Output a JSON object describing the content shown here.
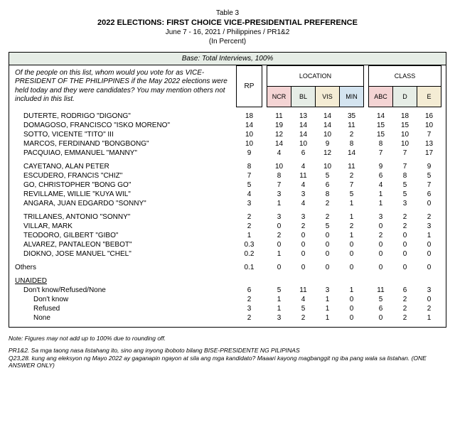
{
  "header": {
    "table_label": "Table 3",
    "title": "2022 ELECTIONS: FIRST CHOICE VICE-PRESIDENTIAL PREFERENCE",
    "sub1": "June 7 - 16, 2021 / Philippines / PR1&2",
    "sub2": "(In Percent)"
  },
  "base_row": "Base: Total Interviews, 100%",
  "question": "Of the people on this list, whom would you vote for as VICE-PRESIDENT OF THE PHILIPPINES if the May 2022 elections were held today and they were candidates? You may mention others not included in this list.",
  "columns": {
    "rp": "RP",
    "location_group": "LOCATION",
    "class_group": "CLASS",
    "loc": [
      "NCR",
      "BL",
      "VIS",
      "MIN"
    ],
    "cls": [
      "ABC",
      "D",
      "E"
    ]
  },
  "groups": [
    [
      {
        "name": "DUTERTE, RODRIGO \"DIGONG\"",
        "rp": "18",
        "loc": [
          "11",
          "13",
          "14",
          "35"
        ],
        "cls": [
          "14",
          "18",
          "16"
        ]
      },
      {
        "name": "DOMAGOSO, FRANCISCO \"ISKO MORENO\"",
        "rp": "14",
        "loc": [
          "19",
          "14",
          "14",
          "11"
        ],
        "cls": [
          "15",
          "15",
          "10"
        ]
      },
      {
        "name": "SOTTO, VICENTE \"TITO\" III",
        "rp": "10",
        "loc": [
          "12",
          "14",
          "10",
          "2"
        ],
        "cls": [
          "15",
          "10",
          "7"
        ]
      },
      {
        "name": "MARCOS, FERDINAND \"BONGBONG\"",
        "rp": "10",
        "loc": [
          "14",
          "10",
          "9",
          "8"
        ],
        "cls": [
          "8",
          "10",
          "13"
        ]
      },
      {
        "name": "PACQUIAO, EMMANUEL \"MANNY\"",
        "rp": "9",
        "loc": [
          "4",
          "6",
          "12",
          "14"
        ],
        "cls": [
          "7",
          "7",
          "17"
        ]
      }
    ],
    [
      {
        "name": "CAYETANO, ALAN PETER",
        "rp": "8",
        "loc": [
          "10",
          "4",
          "10",
          "11"
        ],
        "cls": [
          "9",
          "7",
          "9"
        ]
      },
      {
        "name": "ESCUDERO, FRANCIS \"CHIZ\"",
        "rp": "7",
        "loc": [
          "8",
          "11",
          "5",
          "2"
        ],
        "cls": [
          "6",
          "8",
          "5"
        ]
      },
      {
        "name": "GO, CHRISTOPHER \"BONG GO\"",
        "rp": "5",
        "loc": [
          "7",
          "4",
          "6",
          "7"
        ],
        "cls": [
          "4",
          "5",
          "7"
        ]
      },
      {
        "name": "REVILLAME, WILLIE \"KUYA WIL\"",
        "rp": "4",
        "loc": [
          "3",
          "3",
          "8",
          "5"
        ],
        "cls": [
          "1",
          "5",
          "6"
        ]
      },
      {
        "name": "ANGARA, JUAN EDGARDO \"SONNY\"",
        "rp": "3",
        "loc": [
          "1",
          "4",
          "2",
          "1"
        ],
        "cls": [
          "1",
          "3",
          "0"
        ]
      }
    ],
    [
      {
        "name": "TRILLANES, ANTONIO \"SONNY\"",
        "rp": "2",
        "loc": [
          "3",
          "3",
          "2",
          "1"
        ],
        "cls": [
          "3",
          "2",
          "2"
        ]
      },
      {
        "name": "VILLAR, MARK",
        "rp": "2",
        "loc": [
          "0",
          "2",
          "5",
          "2"
        ],
        "cls": [
          "0",
          "2",
          "3"
        ]
      },
      {
        "name": "TEODORO, GILBERT \"GIBO\"",
        "rp": "1",
        "loc": [
          "2",
          "0",
          "0",
          "1"
        ],
        "cls": [
          "2",
          "0",
          "1"
        ]
      },
      {
        "name": "ALVAREZ, PANTALEON \"BEBOT\"",
        "rp": "0.3",
        "loc": [
          "0",
          "0",
          "0",
          "0"
        ],
        "cls": [
          "0",
          "0",
          "0"
        ]
      },
      {
        "name": "DIOKNO, JOSE MANUEL \"CHEL\"",
        "rp": "0.2",
        "loc": [
          "1",
          "0",
          "0",
          "0"
        ],
        "cls": [
          "0",
          "0",
          "0"
        ]
      }
    ]
  ],
  "others": {
    "name": "Others",
    "rp": "0.1",
    "loc": [
      "0",
      "0",
      "0",
      "0"
    ],
    "cls": [
      "0",
      "0",
      "0"
    ]
  },
  "unaided_label": "UNAIDED",
  "unaided": [
    {
      "name": "Don't know/Refused/None",
      "rp": "6",
      "loc": [
        "5",
        "11",
        "3",
        "1"
      ],
      "cls": [
        "11",
        "6",
        "3"
      ]
    },
    {
      "name": "Don't know",
      "rp": "2",
      "loc": [
        "1",
        "4",
        "1",
        "0"
      ],
      "cls": [
        "5",
        "2",
        "0"
      ],
      "indent": true
    },
    {
      "name": "Refused",
      "rp": "3",
      "loc": [
        "1",
        "5",
        "1",
        "0"
      ],
      "cls": [
        "6",
        "2",
        "2"
      ],
      "indent": true
    },
    {
      "name": "None",
      "rp": "2",
      "loc": [
        "3",
        "2",
        "1",
        "0"
      ],
      "cls": [
        "0",
        "2",
        "1"
      ],
      "indent": true
    }
  ],
  "footnotes": {
    "line1": "Note: Figures may not add up to 100% due to rounding off.",
    "line2a": "PR1&2.   Sa mga taong nasa listahang ito, sino ang inyong iboboto bilang BISE-PRESIDENTE NG PILIPINAS",
    "line2b": "Q23,28. kung ang eleksyon ng Mayo 2022 ay gaganapin ngayon at sila ang mga kandidato?  Maaari kayong magbanggit ng iba pang wala sa listahan. (ONE ANSWER ONLY)"
  },
  "colors": {
    "loc_headers": [
      "#f4d4d4",
      "#e6ede6",
      "#f4ecd4",
      "#d4e4f0"
    ],
    "cls_headers": [
      "#f4d4d4",
      "#e6ede6",
      "#f4ecd4"
    ],
    "base_bg": "#e6ede6"
  }
}
